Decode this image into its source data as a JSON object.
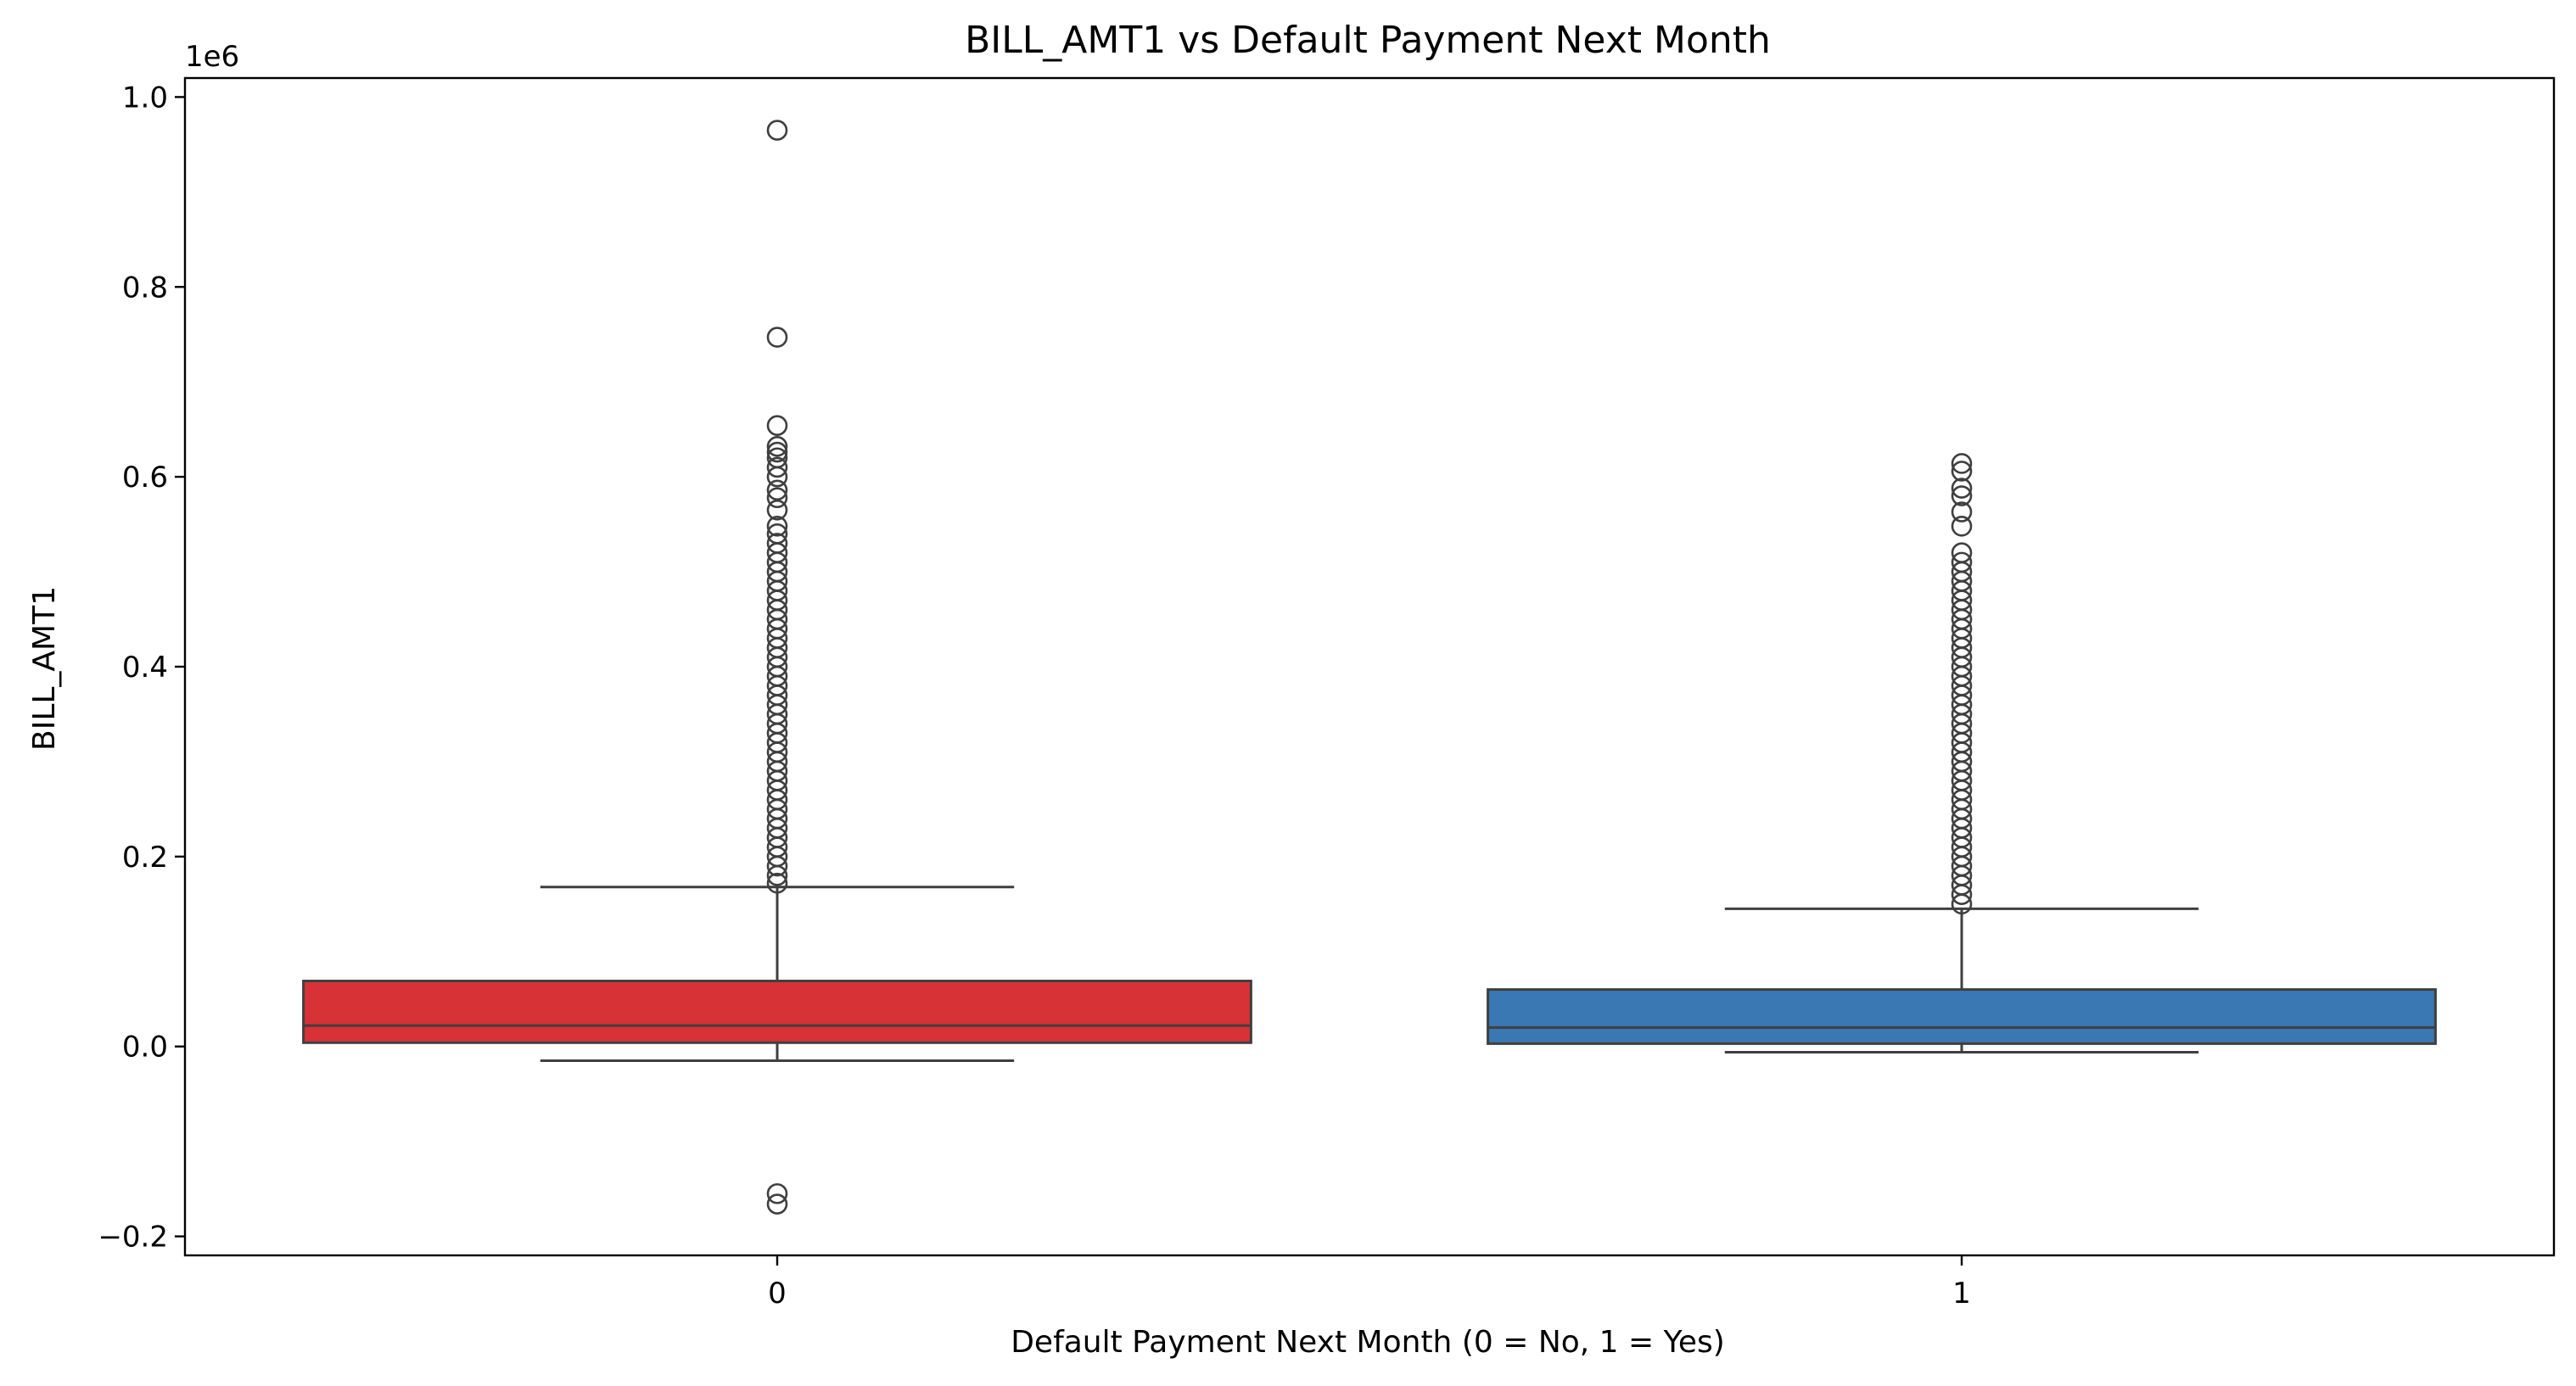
{
  "chart_data": {
    "type": "box",
    "title": "BILL_AMT1 vs Default Payment Next Month",
    "xlabel": "Default Payment Next Month (0 = No, 1 = Yes)",
    "ylabel": "BILL_AMT1",
    "y_offset_label": "1e6",
    "y_scale_factor": 1000000,
    "categories": [
      "0",
      "1"
    ],
    "ylim": [
      -0.22,
      1.02
    ],
    "yticks": [
      -0.2,
      0.0,
      0.2,
      0.4,
      0.6,
      0.8,
      1.0
    ],
    "ytick_labels": [
      "−0.2",
      "0.0",
      "0.2",
      "0.4",
      "0.6",
      "0.8",
      "1.0"
    ],
    "grid": false,
    "boxes": [
      {
        "category": "0",
        "color": "#d73235",
        "q1": 0.004,
        "median": 0.022,
        "q3": 0.069,
        "whisker_low": -0.015,
        "whisker_high": 0.168,
        "outliers": [
          0.965,
          0.747,
          0.654,
          0.632,
          0.626,
          0.62,
          0.61,
          0.6,
          0.586,
          0.578,
          0.565,
          0.548,
          0.54,
          0.53,
          0.52,
          0.51,
          0.5,
          0.49,
          0.48,
          0.47,
          0.46,
          0.45,
          0.44,
          0.43,
          0.42,
          0.41,
          0.4,
          0.39,
          0.38,
          0.37,
          0.36,
          0.35,
          0.34,
          0.33,
          0.32,
          0.31,
          0.3,
          0.29,
          0.28,
          0.27,
          0.26,
          0.25,
          0.24,
          0.23,
          0.22,
          0.21,
          0.2,
          0.19,
          0.18,
          0.172,
          -0.155,
          -0.166
        ]
      },
      {
        "category": "1",
        "color": "#3a78b4",
        "q1": 0.003,
        "median": 0.02,
        "q3": 0.06,
        "whisker_low": -0.006,
        "whisker_high": 0.145,
        "outliers": [
          0.614,
          0.606,
          0.588,
          0.58,
          0.563,
          0.548,
          0.52,
          0.51,
          0.5,
          0.49,
          0.48,
          0.47,
          0.46,
          0.45,
          0.44,
          0.43,
          0.42,
          0.41,
          0.4,
          0.39,
          0.38,
          0.37,
          0.36,
          0.35,
          0.34,
          0.33,
          0.32,
          0.31,
          0.3,
          0.29,
          0.28,
          0.27,
          0.26,
          0.25,
          0.24,
          0.23,
          0.22,
          0.21,
          0.2,
          0.19,
          0.18,
          0.17,
          0.16,
          0.15
        ]
      }
    ]
  }
}
